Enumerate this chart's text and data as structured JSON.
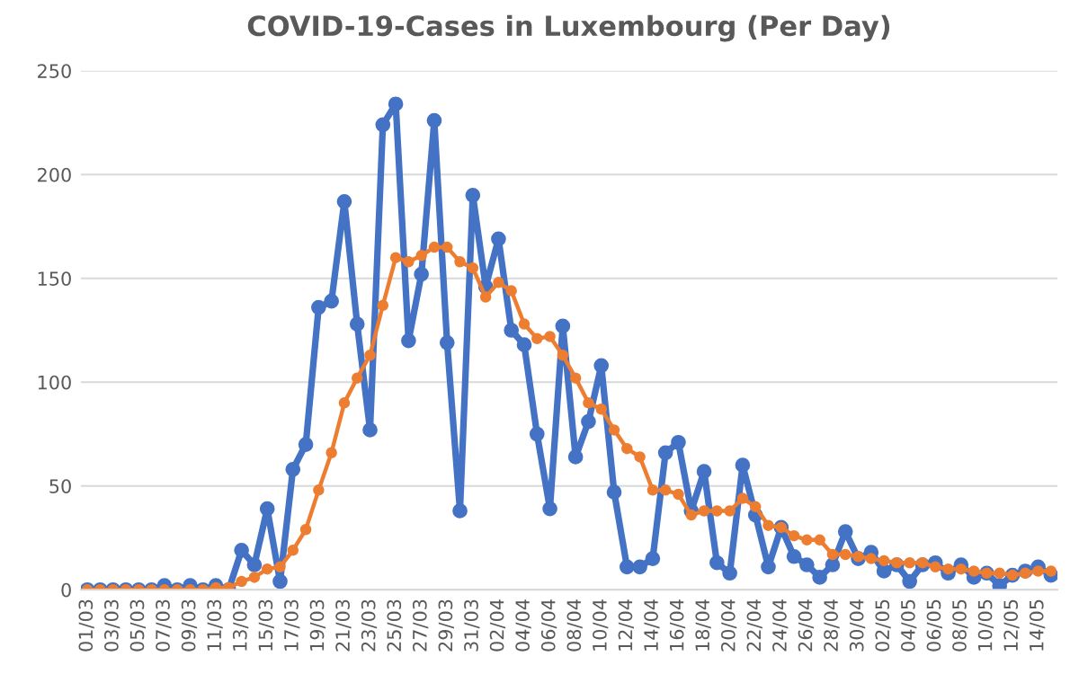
{
  "chart_data": {
    "type": "line",
    "title": "COVID-19-Cases in Luxembourg (Per Day)",
    "categories": [
      "01/03",
      null,
      "03/03",
      null,
      "05/03",
      null,
      "07/03",
      null,
      "09/03",
      null,
      "11/03",
      null,
      "13/03",
      null,
      "15/03",
      null,
      "17/03",
      null,
      "19/03",
      null,
      "21/03",
      null,
      "23/03",
      null,
      "25/03",
      null,
      "27/03",
      null,
      "29/03",
      null,
      "31/03",
      null,
      "02/04",
      null,
      "04/04",
      null,
      "06/04",
      null,
      "08/04",
      null,
      "10/04",
      null,
      "12/04",
      null,
      "14/04",
      null,
      "16/04",
      null,
      "18/04",
      null,
      "20/04",
      null,
      "22/04",
      null,
      "24/04",
      null,
      "26/04",
      null,
      "28/04",
      null,
      "30/04",
      null,
      "02/05",
      null,
      "04/05",
      null,
      "06/05",
      null,
      "08/05",
      null,
      "10/05",
      null,
      "12/05",
      null,
      "14/05",
      null
    ],
    "series": [
      {
        "color": "#4472c4",
        "values": [
          0,
          0,
          0,
          0,
          0,
          0,
          2,
          0,
          2,
          0,
          2,
          0,
          19,
          12,
          39,
          4,
          58,
          70,
          136,
          139,
          187,
          128,
          77,
          224,
          234,
          120,
          152,
          226,
          119,
          38,
          190,
          146,
          169,
          125,
          118,
          75,
          39,
          127,
          64,
          81,
          108,
          47,
          11,
          11,
          15,
          66,
          71,
          38,
          57,
          13,
          8,
          60,
          36,
          11,
          30,
          16,
          12,
          6,
          12,
          28,
          15,
          18,
          9,
          12,
          4,
          12,
          13,
          8,
          12,
          6,
          8,
          2,
          7,
          9,
          11,
          7
        ]
      },
      {
        "color": "#ed7d31",
        "values": [
          0,
          0,
          0,
          0,
          0,
          0,
          0,
          0,
          0,
          0,
          1,
          1,
          4,
          6,
          10,
          11,
          19,
          29,
          48,
          66,
          90,
          102,
          113,
          137,
          160,
          158,
          161,
          165,
          165,
          158,
          155,
          141,
          148,
          144,
          128,
          121,
          122,
          113,
          102,
          90,
          87,
          77,
          68,
          64,
          48,
          48,
          46,
          36,
          38,
          38,
          38,
          44,
          40,
          31,
          30,
          26,
          24,
          24,
          17,
          17,
          16,
          15,
          14,
          13,
          13,
          13,
          11,
          10,
          10,
          9,
          8,
          8,
          7,
          8,
          9,
          9
        ]
      }
    ],
    "ylim": [
      0,
      250
    ],
    "yticks": [
      0,
      50,
      100,
      150,
      200,
      250
    ],
    "grid": "y",
    "marker": "circle",
    "line_style": "solid"
  }
}
